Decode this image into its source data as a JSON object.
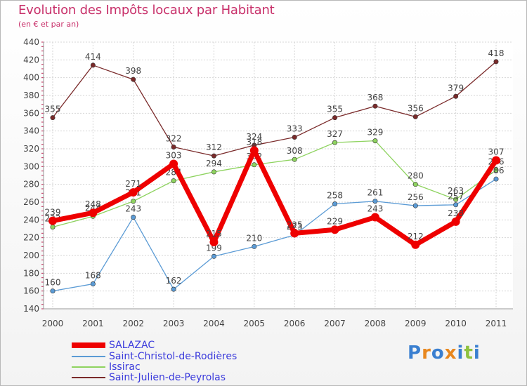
{
  "chart_data": {
    "type": "line",
    "title": "Evolution des Impôts locaux par Habitant",
    "subtitle": "(en € et par an)",
    "x": [
      "2000",
      "2001",
      "2002",
      "2003",
      "2004",
      "2005",
      "2006",
      "2007",
      "2008",
      "2009",
      "2010",
      "2011"
    ],
    "ylim": [
      140,
      440
    ],
    "yticks": [
      "140",
      "160",
      "180",
      "200",
      "220",
      "240",
      "260",
      "280",
      "300",
      "320",
      "340",
      "360",
      "380",
      "400",
      "420",
      "440"
    ],
    "grid": true,
    "series": [
      {
        "name": "Saint-Julien-de-Peyrolas",
        "color": "#7a2a2a",
        "values": [
          355,
          414,
          398,
          322,
          312,
          324,
          333,
          355,
          368,
          356,
          379,
          418
        ]
      },
      {
        "name": "Issirac",
        "color": "#8ed35f",
        "values": [
          232,
          244,
          261,
          284,
          294,
          302,
          308,
          327,
          329,
          280,
          263,
          296
        ]
      },
      {
        "name": "Saint-Christol-de-Rodières",
        "color": "#5b9bd5",
        "values": [
          160,
          168,
          243,
          162,
          199,
          210,
          223,
          258,
          261,
          256,
          257,
          286
        ]
      },
      {
        "name": "SALAZAC",
        "color": "#ee0000",
        "values": [
          239,
          248,
          271,
          303,
          215,
          318,
          225,
          229,
          243,
          212,
          238,
          307
        ]
      }
    ]
  },
  "legend": [
    "SALAZAC",
    "Saint-Christol-de-Rodières",
    "Issirac",
    "Saint-Julien-de-Peyrolas"
  ],
  "brand": {
    "letters": [
      "P",
      "r",
      "o",
      "x",
      "i",
      "t",
      "i"
    ],
    "colors": [
      "#3a7fd0",
      "#e8871e",
      "#3a7fd0",
      "#e8871e",
      "#3a7fd0",
      "#8fc23f",
      "#3a7fd0"
    ]
  }
}
